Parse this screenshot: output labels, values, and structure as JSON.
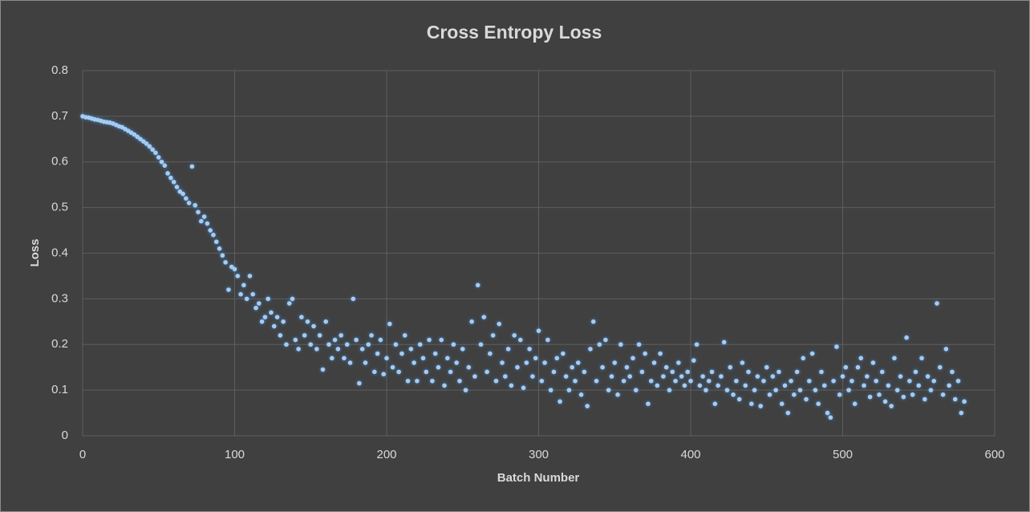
{
  "chart_data": {
    "type": "scatter",
    "title": "Cross Entropy Loss",
    "x_label": "Batch Number",
    "y_label": "Loss",
    "color": "#a6cbf0",
    "grid": true,
    "xlim": [
      0,
      600
    ],
    "xticks": [
      0,
      100,
      200,
      300,
      400,
      500,
      600
    ],
    "ylim": [
      0,
      0.8
    ],
    "yticks": [
      0,
      0.1,
      0.2,
      0.3,
      0.4,
      0.5,
      0.6,
      0.7,
      0.8
    ],
    "x": [
      0,
      2,
      4,
      6,
      8,
      10,
      12,
      14,
      16,
      18,
      20,
      22,
      24,
      26,
      28,
      30,
      32,
      34,
      36,
      38,
      40,
      42,
      44,
      46,
      48,
      50,
      52,
      54,
      56,
      58,
      60,
      62,
      64,
      66,
      68,
      70,
      72,
      74,
      76,
      78,
      80,
      82,
      84,
      86,
      88,
      90,
      92,
      94,
      96,
      98,
      100,
      102,
      104,
      106,
      108,
      110,
      112,
      114,
      116,
      118,
      120,
      122,
      124,
      126,
      128,
      130,
      132,
      134,
      136,
      138,
      140,
      142,
      144,
      146,
      148,
      150,
      152,
      154,
      156,
      158,
      160,
      162,
      164,
      166,
      168,
      170,
      172,
      174,
      176,
      178,
      180,
      182,
      184,
      186,
      188,
      190,
      192,
      194,
      196,
      198,
      200,
      202,
      204,
      206,
      208,
      210,
      212,
      214,
      216,
      218,
      220,
      222,
      224,
      226,
      228,
      230,
      232,
      234,
      236,
      238,
      240,
      242,
      244,
      246,
      248,
      250,
      252,
      254,
      256,
      258,
      260,
      262,
      264,
      266,
      268,
      270,
      272,
      274,
      276,
      278,
      280,
      282,
      284,
      286,
      288,
      290,
      292,
      294,
      296,
      298,
      300,
      302,
      304,
      306,
      308,
      310,
      312,
      314,
      316,
      318,
      320,
      322,
      324,
      326,
      328,
      330,
      332,
      334,
      336,
      338,
      340,
      342,
      344,
      346,
      348,
      350,
      352,
      354,
      356,
      358,
      360,
      362,
      364,
      366,
      368,
      370,
      372,
      374,
      376,
      378,
      380,
      382,
      384,
      386,
      388,
      390,
      392,
      394,
      396,
      398,
      400,
      402,
      404,
      406,
      408,
      410,
      412,
      414,
      416,
      418,
      420,
      422,
      424,
      426,
      428,
      430,
      432,
      434,
      436,
      438,
      440,
      442,
      444,
      446,
      448,
      450,
      452,
      454,
      456,
      458,
      460,
      462,
      464,
      466,
      468,
      470,
      472,
      474,
      476,
      478,
      480,
      482,
      484,
      486,
      488,
      490,
      492,
      494,
      496,
      498,
      500,
      502,
      504,
      506,
      508,
      510,
      512,
      514,
      516,
      518,
      520,
      522,
      524,
      526,
      528,
      530,
      532,
      534,
      536,
      538,
      540,
      542,
      544,
      546,
      548,
      550,
      552,
      554,
      556,
      558,
      560,
      562,
      564,
      566,
      568,
      570,
      572,
      574,
      576,
      578,
      580
    ],
    "values": [
      0.7,
      0.698,
      0.697,
      0.695,
      0.693,
      0.692,
      0.69,
      0.688,
      0.687,
      0.686,
      0.684,
      0.681,
      0.678,
      0.676,
      0.672,
      0.668,
      0.664,
      0.66,
      0.655,
      0.65,
      0.645,
      0.64,
      0.634,
      0.627,
      0.62,
      0.61,
      0.6,
      0.592,
      0.575,
      0.565,
      0.556,
      0.545,
      0.535,
      0.53,
      0.52,
      0.51,
      0.59,
      0.505,
      0.49,
      0.47,
      0.48,
      0.465,
      0.45,
      0.44,
      0.425,
      0.41,
      0.395,
      0.38,
      0.32,
      0.37,
      0.365,
      0.35,
      0.31,
      0.33,
      0.3,
      0.35,
      0.31,
      0.28,
      0.29,
      0.25,
      0.26,
      0.3,
      0.27,
      0.24,
      0.26,
      0.22,
      0.25,
      0.2,
      0.29,
      0.3,
      0.21,
      0.19,
      0.26,
      0.22,
      0.25,
      0.2,
      0.24,
      0.19,
      0.22,
      0.145,
      0.25,
      0.2,
      0.17,
      0.21,
      0.19,
      0.22,
      0.17,
      0.2,
      0.16,
      0.3,
      0.21,
      0.115,
      0.19,
      0.16,
      0.2,
      0.22,
      0.14,
      0.18,
      0.21,
      0.135,
      0.17,
      0.245,
      0.15,
      0.2,
      0.14,
      0.18,
      0.22,
      0.12,
      0.19,
      0.16,
      0.12,
      0.2,
      0.17,
      0.14,
      0.21,
      0.12,
      0.18,
      0.15,
      0.21,
      0.11,
      0.17,
      0.14,
      0.2,
      0.16,
      0.12,
      0.19,
      0.1,
      0.15,
      0.25,
      0.13,
      0.33,
      0.2,
      0.26,
      0.14,
      0.18,
      0.22,
      0.12,
      0.245,
      0.16,
      0.13,
      0.19,
      0.11,
      0.22,
      0.15,
      0.21,
      0.105,
      0.16,
      0.19,
      0.13,
      0.17,
      0.23,
      0.12,
      0.16,
      0.21,
      0.1,
      0.14,
      0.17,
      0.075,
      0.18,
      0.13,
      0.1,
      0.15,
      0.12,
      0.16,
      0.09,
      0.14,
      0.065,
      0.19,
      0.25,
      0.12,
      0.2,
      0.15,
      0.21,
      0.1,
      0.13,
      0.16,
      0.09,
      0.2,
      0.12,
      0.15,
      0.13,
      0.17,
      0.1,
      0.2,
      0.14,
      0.18,
      0.07,
      0.12,
      0.16,
      0.11,
      0.18,
      0.13,
      0.15,
      0.1,
      0.14,
      0.12,
      0.16,
      0.13,
      0.11,
      0.14,
      0.12,
      0.165,
      0.2,
      0.11,
      0.13,
      0.1,
      0.12,
      0.14,
      0.07,
      0.11,
      0.13,
      0.205,
      0.1,
      0.15,
      0.09,
      0.12,
      0.08,
      0.16,
      0.11,
      0.14,
      0.07,
      0.1,
      0.13,
      0.065,
      0.12,
      0.15,
      0.09,
      0.13,
      0.1,
      0.14,
      0.07,
      0.11,
      0.05,
      0.12,
      0.09,
      0.14,
      0.1,
      0.17,
      0.08,
      0.12,
      0.18,
      0.1,
      0.07,
      0.14,
      0.11,
      0.05,
      0.04,
      0.12,
      0.195,
      0.09,
      0.13,
      0.15,
      0.1,
      0.12,
      0.07,
      0.15,
      0.17,
      0.11,
      0.13,
      0.085,
      0.16,
      0.12,
      0.09,
      0.14,
      0.075,
      0.11,
      0.065,
      0.17,
      0.1,
      0.13,
      0.085,
      0.215,
      0.12,
      0.09,
      0.14,
      0.11,
      0.17,
      0.08,
      0.13,
      0.1,
      0.12,
      0.29,
      0.15,
      0.09,
      0.19,
      0.11,
      0.14,
      0.08,
      0.12,
      0.05,
      0.075
    ]
  }
}
